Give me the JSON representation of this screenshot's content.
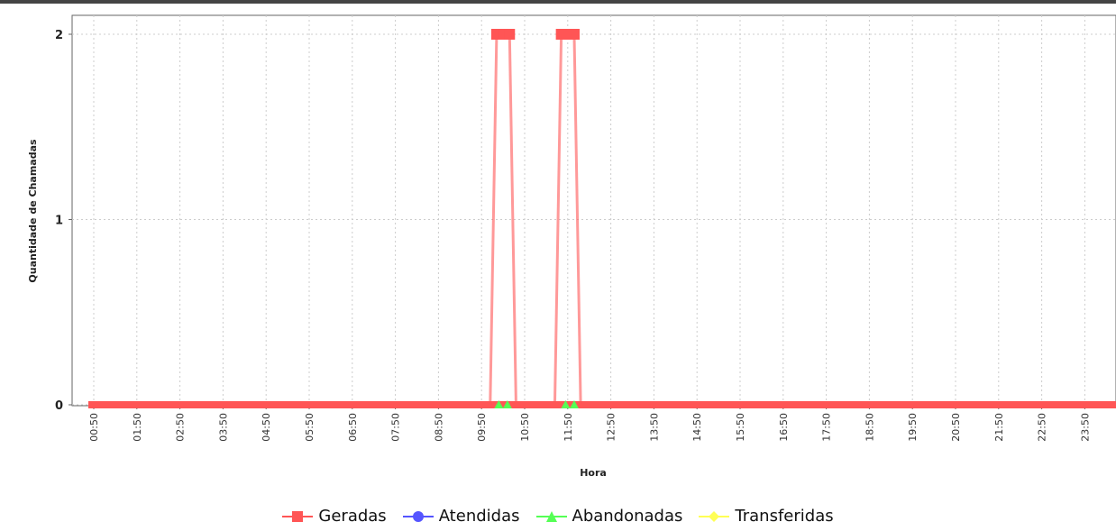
{
  "chart_data": {
    "type": "line",
    "title": "",
    "xlabel": "Hora",
    "ylabel": "Quantidade de Chamadas",
    "ylim": [
      0,
      2
    ],
    "y_ticks": [
      "0",
      "1",
      "2"
    ],
    "grid": true,
    "legend_position": "bottom",
    "x_domain": [
      0,
      23.7
    ],
    "x_ticks": [
      "00:50",
      "01:50",
      "02:50",
      "03:50",
      "04:50",
      "05:50",
      "06:50",
      "07:50",
      "08:50",
      "09:50",
      "10:50",
      "11:50",
      "12:50",
      "13:50",
      "14:50",
      "15:50",
      "16:50",
      "17:50",
      "18:50",
      "19:50",
      "20:50",
      "21:50",
      "22:50",
      "23:50"
    ],
    "series": [
      {
        "name": "Geradas",
        "color": "#ff5555",
        "marker": "square",
        "x": [
          9.2,
          9.35,
          9.5,
          9.65,
          9.8,
          10.7,
          10.85,
          11.0,
          11.15,
          11.3
        ],
        "y": [
          0,
          2,
          2,
          2,
          0,
          0,
          2,
          2,
          2,
          0
        ]
      },
      {
        "name": "Atendidas",
        "color": "#5555ff",
        "marker": "circle",
        "x": [],
        "y": []
      },
      {
        "name": "Abandonadas",
        "color": "#55ff55",
        "marker": "triangle",
        "x": [
          9.4,
          9.6,
          10.95,
          11.15
        ],
        "y": [
          0,
          0,
          0,
          0
        ]
      },
      {
        "name": "Transferidas",
        "color": "#ffff55",
        "marker": "diamond",
        "x": [],
        "y": []
      }
    ]
  }
}
